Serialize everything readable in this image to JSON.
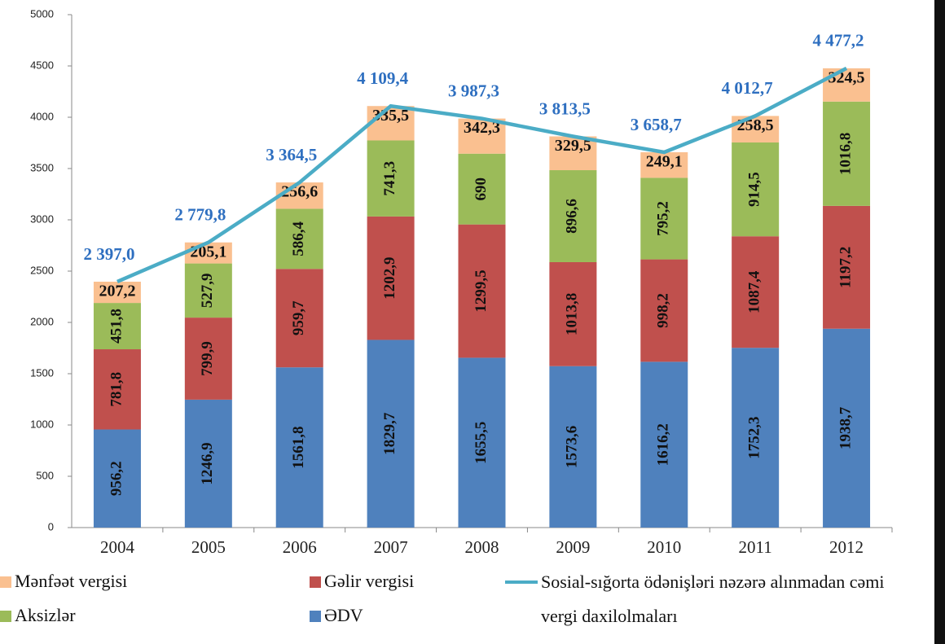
{
  "chart_data": {
    "type": "bar",
    "stacked": true,
    "categories": [
      "2004",
      "2005",
      "2006",
      "2007",
      "2008",
      "2009",
      "2010",
      "2011",
      "2012"
    ],
    "ylim": [
      0,
      5000
    ],
    "yticks": [
      0,
      500,
      1000,
      1500,
      2000,
      2500,
      3000,
      3500,
      4000,
      4500,
      5000
    ],
    "grid": false,
    "series": [
      {
        "name": "ƏDV",
        "color": "#4f81bd",
        "values": [
          956.2,
          1246.9,
          1561.8,
          1829.7,
          1655.5,
          1573.6,
          1616.2,
          1752.3,
          1938.7
        ],
        "value_labels": [
          "956,2",
          "1246,9",
          "1561,8",
          "1829,7",
          "1655,5",
          "1573,6",
          "1616,2",
          "1752,3",
          "1938,7"
        ]
      },
      {
        "name": "Gəlir vergisi",
        "color": "#c0504d",
        "values": [
          781.8,
          799.9,
          959.7,
          1202.9,
          1299.5,
          1013.8,
          998.2,
          1087.4,
          1197.2
        ],
        "value_labels": [
          "781,8",
          "799,9",
          "959,7",
          "1202,9",
          "1299,5",
          "1013,8",
          "998,2",
          "1087,4",
          "1197,2"
        ]
      },
      {
        "name": "Aksizlər",
        "color": "#9bbb59",
        "values": [
          451.8,
          527.9,
          586.4,
          741.3,
          690,
          896.6,
          795.2,
          914.5,
          1016.8
        ],
        "value_labels": [
          "451,8",
          "527,9",
          "586,4",
          "741,3",
          "690",
          "896,6",
          "795,2",
          "914,5",
          "1016,8"
        ]
      },
      {
        "name": "Mənfəət vergisi",
        "color": "#fac090",
        "values": [
          207.2,
          205.1,
          256.6,
          335.5,
          342.3,
          329.5,
          249.1,
          258.5,
          324.5
        ],
        "value_labels": [
          "207,2",
          "205,1",
          "256,6",
          "335,5",
          "342,3",
          "329,5",
          "249,1",
          "258,5",
          "324,5"
        ]
      },
      {
        "name": "Sosial-sığorta ödənişləri nəzərə alınmadan cəmi vergi daxilolmaları",
        "type": "line",
        "color": "#4bacc6",
        "values": [
          2397.0,
          2779.8,
          3364.5,
          4109.4,
          3987.3,
          3813.5,
          3658.7,
          4012.7,
          4477.2
        ],
        "value_labels": [
          "2 397,0",
          "2 779,8",
          "3 364,5",
          "4 109,4",
          "3 987,3",
          "3 813,5",
          "3 658,7",
          "4 012,7",
          "4 477,2"
        ]
      }
    ]
  }
}
